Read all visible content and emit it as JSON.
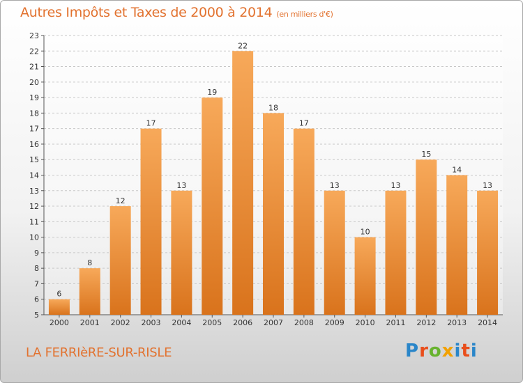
{
  "header": {
    "title": "Autres Impôts et Taxes de 2000 à 2014",
    "unit": "(en milliers d'€)"
  },
  "footer": {
    "city": "LA FERRIèRE-SUR-RISLE",
    "logo": {
      "text": "Proxiti",
      "parts": [
        "P",
        "r",
        "o",
        "x",
        "i",
        "t",
        "i"
      ]
    }
  },
  "colors": {
    "bar_top": "#f7a95a",
    "bar_bottom": "#d9731c",
    "title": "#e2722f",
    "grid": "#c8c8c8"
  },
  "chart_data": {
    "type": "bar",
    "title": "Autres Impôts et Taxes de 2000 à 2014",
    "subtitle": "(en milliers d'€)",
    "xlabel": "",
    "ylabel": "",
    "categories": [
      "2000",
      "2001",
      "2002",
      "2003",
      "2004",
      "2005",
      "2006",
      "2007",
      "2008",
      "2009",
      "2010",
      "2011",
      "2012",
      "2013",
      "2014"
    ],
    "values": [
      6,
      8,
      12,
      17,
      13,
      19,
      22,
      18,
      17,
      13,
      10,
      13,
      15,
      14,
      13
    ],
    "ylim": [
      5,
      23
    ],
    "yticks": [
      5,
      6,
      7,
      8,
      9,
      10,
      11,
      12,
      13,
      14,
      15,
      16,
      17,
      18,
      19,
      20,
      21,
      22,
      23
    ],
    "grid": true,
    "data_labels": true
  }
}
